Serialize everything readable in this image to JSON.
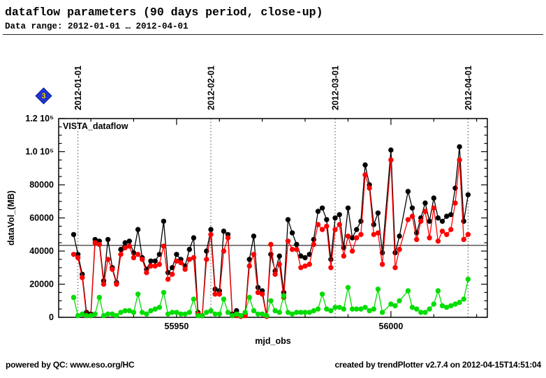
{
  "header": {
    "title": "dataflow parameters (90 days period, close-up)",
    "subtitle": "Data range: 2012-01-01 … 2012-04-01"
  },
  "nav_marker": {
    "label": "3"
  },
  "chart_data": {
    "type": "scatter",
    "in_plot_label": "VISTA_dataflow",
    "xlabel": "mjd_obs",
    "ylabel": "dataVol_(MB)",
    "x_range": [
      55922.5,
      56022.5
    ],
    "y_range": [
      0,
      120000
    ],
    "x_major_ticks": [
      55950,
      56000
    ],
    "x_minor_tick_step": 10,
    "y_major_tick_step": 20000,
    "y_minor_tick_step": 5000,
    "y_tick_labels": [
      "0",
      "20000",
      "40000",
      "60000",
      "80000",
      "1.0 10⁵",
      "1.2 10⁵"
    ],
    "reference_hline": 43400,
    "grid": "date-gridlines-only",
    "legend": "none",
    "date_gridlines": [
      {
        "label": "2012-01-01",
        "mjd": 55927
      },
      {
        "label": "2012-02-01",
        "mjd": 55958
      },
      {
        "label": "2012-03-01",
        "mjd": 55987
      },
      {
        "label": "2012-04-01",
        "mjd": 56018
      }
    ],
    "x": [
      55926,
      55927,
      55928,
      55929,
      55930,
      55931,
      55932,
      55933,
      55934,
      55935,
      55936,
      55937,
      55938,
      55939,
      55940,
      55941,
      55942,
      55943,
      55944,
      55945,
      55946,
      55947,
      55948,
      55949,
      55950,
      55951,
      55952,
      55953,
      55954,
      55955,
      55956,
      55957,
      55958,
      55959,
      55960,
      55961,
      55962,
      55963,
      55964,
      55965,
      55966,
      55967,
      55968,
      55969,
      55970,
      55971,
      55972,
      55973,
      55974,
      55975,
      55976,
      55977,
      55978,
      55979,
      55980,
      55981,
      55982,
      55983,
      55984,
      55985,
      55986,
      55987,
      55988,
      55989,
      55990,
      55991,
      55992,
      55993,
      55994,
      55995,
      55996,
      55997,
      55998,
      56000,
      56001,
      56002,
      56004,
      56005,
      56006,
      56007,
      56008,
      56009,
      56010,
      56011,
      56012,
      56013,
      56014,
      56015,
      56016,
      56017,
      56018
    ],
    "series": [
      {
        "name": "black",
        "color": "#000000",
        "values": [
          50000,
          38000,
          26000,
          3000,
          2000,
          47000,
          46000,
          22000,
          47000,
          30000,
          21000,
          41000,
          45000,
          46000,
          39000,
          53000,
          36000,
          29000,
          34000,
          34000,
          38000,
          58000,
          27000,
          30000,
          38000,
          35000,
          31000,
          41000,
          48000,
          3000,
          1000,
          40000,
          53000,
          17000,
          16000,
          52000,
          50000,
          2000,
          4000,
          1000,
          2000,
          35000,
          49000,
          18000,
          16000,
          1000,
          38000,
          28000,
          37000,
          15000,
          59000,
          51000,
          44000,
          37000,
          36000,
          38000,
          47000,
          64000,
          66000,
          59000,
          35000,
          60000,
          62000,
          42000,
          66000,
          48000,
          53000,
          58000,
          92000,
          80000,
          56000,
          63000,
          39000,
          101000,
          39000,
          49000,
          76000,
          66000,
          51000,
          60000,
          69000,
          58000,
          72000,
          60000,
          58000,
          61000,
          62000,
          78000,
          103000,
          58000,
          74000
        ]
      },
      {
        "name": "red",
        "color": "#ff0000",
        "values": [
          38000,
          36000,
          24000,
          1000,
          1000,
          45000,
          44000,
          20000,
          35000,
          29000,
          20000,
          38000,
          42000,
          43000,
          36000,
          38000,
          35000,
          27000,
          31000,
          31000,
          32000,
          43000,
          23000,
          26000,
          34000,
          33000,
          29000,
          35000,
          36000,
          2000,
          1000,
          35000,
          50000,
          14000,
          14000,
          40000,
          48000,
          1000,
          1000,
          500,
          1000,
          31000,
          38000,
          15000,
          14000,
          500,
          44000,
          26000,
          32000,
          12000,
          46000,
          41000,
          41000,
          30000,
          31000,
          32000,
          44000,
          56000,
          53000,
          55000,
          30000,
          53000,
          56000,
          37000,
          49000,
          40000,
          48000,
          50000,
          86000,
          78000,
          50000,
          51000,
          32000,
          95000,
          30000,
          41000,
          59000,
          61000,
          47000,
          58000,
          64000,
          48000,
          66000,
          46000,
          52000,
          50000,
          53000,
          69000,
          95000,
          47000,
          50000
        ]
      },
      {
        "name": "green",
        "color": "#00dd00",
        "values": [
          12000,
          1000,
          2000,
          1000,
          1000,
          2000,
          12000,
          1000,
          2000,
          2000,
          1000,
          3000,
          4000,
          4000,
          3000,
          14000,
          3000,
          2000,
          4000,
          5000,
          6000,
          15000,
          2000,
          3000,
          3000,
          2000,
          2000,
          3000,
          11000,
          1000,
          1000,
          3000,
          4000,
          2000,
          2000,
          11000,
          3000,
          1000,
          2000,
          1000,
          3000,
          12000,
          4000,
          2000,
          2000,
          1000,
          10000,
          4000,
          3000,
          13000,
          3000,
          2000,
          3000,
          3000,
          3000,
          3000,
          4000,
          5000,
          14000,
          5000,
          4000,
          6000,
          6000,
          5000,
          18000,
          5000,
          5000,
          5000,
          6000,
          4000,
          5000,
          17000,
          3000,
          8000,
          7000,
          10000,
          16000,
          6000,
          5000,
          3000,
          3000,
          5000,
          8000,
          16000,
          7000,
          6000,
          7000,
          8000,
          9000,
          11000,
          23000
        ]
      }
    ]
  },
  "footer": {
    "left": "powered by QC: www.eso.org/HC",
    "right": "created by trendPlotter v2.7.4 on 2012-04-15T14:51:04"
  }
}
